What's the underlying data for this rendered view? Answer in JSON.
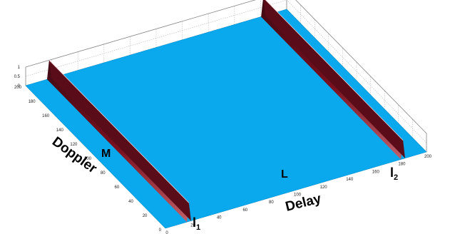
{
  "chart_data": {
    "type": "surface",
    "xlabel": "Delay",
    "ylabel": "Doppler",
    "x_ticks": [
      "0",
      "20",
      "40",
      "60",
      "80",
      "100",
      "120",
      "140",
      "160",
      "180",
      "200"
    ],
    "y_ticks": [
      "0",
      "20",
      "40",
      "60",
      "80",
      "100",
      "120",
      "140",
      "160",
      "180",
      "200"
    ],
    "z_ticks": [
      "0",
      "0.5",
      "1"
    ],
    "xlim": [
      0,
      200
    ],
    "ylim": [
      0,
      200
    ],
    "zlim": [
      0,
      1
    ],
    "grid": true,
    "surface_color": "#0aa9ee",
    "ridge_color": "#7a1020",
    "ridges": [
      {
        "delay": 18,
        "doppler_range": [
          0,
          200
        ],
        "height": 1
      },
      {
        "delay": 182,
        "doppler_range": [
          0,
          200
        ],
        "height": 1
      }
    ],
    "annotations": [
      {
        "text": "M",
        "subscript": ""
      },
      {
        "text": "L",
        "subscript": ""
      },
      {
        "text": "l",
        "subscript": "1"
      },
      {
        "text": "l",
        "subscript": "2"
      }
    ]
  }
}
